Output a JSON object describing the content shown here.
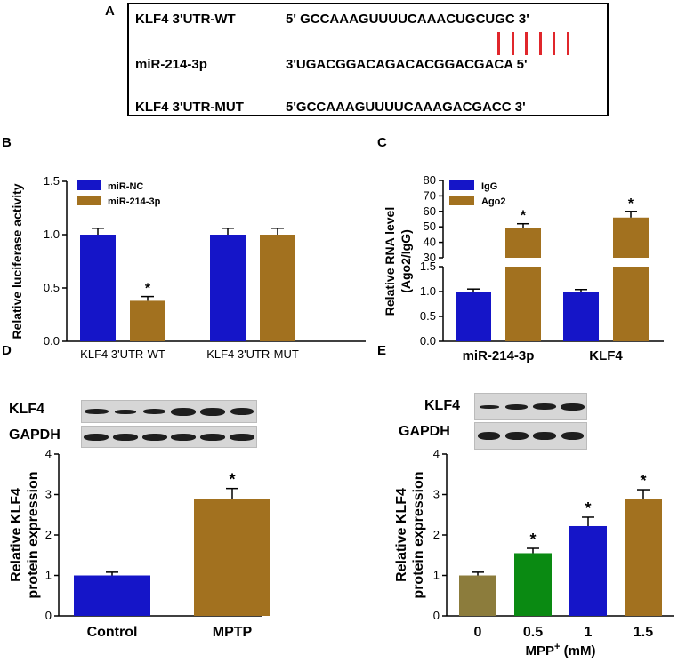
{
  "panel_letters": {
    "A": "A",
    "B": "B",
    "C": "C",
    "D": "D",
    "E": "E"
  },
  "sequences": {
    "wt_name": "KLF4 3'UTR-WT",
    "wt_seq": "5' GCCAAAGUUUUCAAACUGCUGC  3'",
    "mir_name": "miR-214-3p",
    "mir_seq": "3'UGACGGACAGACACGGACGACA 5'",
    "mut_name": "KLF4 3'UTR-MUT",
    "mut_seq": "5'GCCAAAGUUUUCAAAGACGACC  3'",
    "pairing_lines": 6,
    "pairing_color": "#e0262b"
  },
  "blots": {
    "D": {
      "klf4": "KLF4",
      "gapdh": "GAPDH"
    },
    "E": {
      "klf4": "KLF4",
      "gapdh": "GAPDH"
    }
  },
  "colors": {
    "blue": "#1515c8",
    "brown": "#a2711f",
    "olive": "#8c7c3c",
    "green": "#0a8a12"
  },
  "chart_data": [
    {
      "id": "B",
      "type": "bar",
      "categories": [
        "KLF4 3'UTR-WT",
        "KLF4 3'UTR-MUT"
      ],
      "series": [
        {
          "name": "miR-NC",
          "color": "#1515c8",
          "values": [
            1.0,
            1.0
          ],
          "errors": [
            0.06,
            0.06
          ],
          "sig": [
            "",
            ""
          ]
        },
        {
          "name": "miR-214-3p",
          "color": "#a2711f",
          "values": [
            0.38,
            1.0
          ],
          "errors": [
            0.04,
            0.06
          ],
          "sig": [
            "*",
            ""
          ]
        }
      ],
      "ylabel": "Relative luciferase activity",
      "ylim": [
        0,
        1.5
      ],
      "yticks": [
        "0.0",
        "0.5",
        "1.0",
        "1.5"
      ],
      "legend": "top-left"
    },
    {
      "id": "C",
      "type": "bar",
      "categories": [
        "miR-214-3p",
        "KLF4"
      ],
      "series": [
        {
          "name": "IgG",
          "color": "#1515c8",
          "values": [
            1.0,
            1.0
          ],
          "errors": [
            0.05,
            0.04
          ],
          "sig": [
            "",
            ""
          ]
        },
        {
          "name": "Ago2",
          "color": "#a2711f",
          "values": [
            49,
            56
          ],
          "errors": [
            3,
            4
          ],
          "sig": [
            "*",
            "*"
          ]
        }
      ],
      "ylabel": "Relative RNA level (Ago2/IgG)",
      "ylabel_lines": [
        "Relative RNA level",
        "(Ago2/IgG)"
      ],
      "axis_break": {
        "lower": [
          0,
          1.5
        ],
        "upper": [
          30,
          80
        ]
      },
      "yticks_lower": [
        "0.0",
        "0.5",
        "1.0",
        "1.5"
      ],
      "yticks_upper": [
        "30",
        "40",
        "50",
        "60",
        "70",
        "80"
      ],
      "legend": "top-left"
    },
    {
      "id": "D",
      "type": "bar",
      "categories": [
        "Control",
        "MPTP"
      ],
      "colors": [
        "#1515c8",
        "#a2711f"
      ],
      "values": [
        1.0,
        2.88
      ],
      "errors": [
        0.08,
        0.27
      ],
      "sig": [
        "",
        "*"
      ],
      "ylabel_lines": [
        "Relative KLF4",
        "protein expression"
      ],
      "ylabel": "Relative KLF4 protein expression",
      "ylim": [
        0,
        4
      ],
      "yticks": [
        "0",
        "1",
        "2",
        "3",
        "4"
      ]
    },
    {
      "id": "E",
      "type": "bar",
      "categories": [
        "0",
        "0.5",
        "1",
        "1.5"
      ],
      "colors": [
        "#8c7c3c",
        "#0a8a12",
        "#1515c8",
        "#a2711f"
      ],
      "values": [
        1.0,
        1.55,
        2.22,
        2.88
      ],
      "errors": [
        0.08,
        0.12,
        0.22,
        0.24
      ],
      "sig": [
        "",
        "*",
        "*",
        "*"
      ],
      "ylabel_lines": [
        "Relative KLF4",
        "protein expression"
      ],
      "ylabel": "Relative KLF4 protein expression",
      "ylim": [
        0,
        4
      ],
      "yticks": [
        "0",
        "1",
        "2",
        "3",
        "4"
      ],
      "xlabel_main": "MPP",
      "xlabel_sup": "+",
      "xlabel_unit": " (mM)"
    }
  ]
}
